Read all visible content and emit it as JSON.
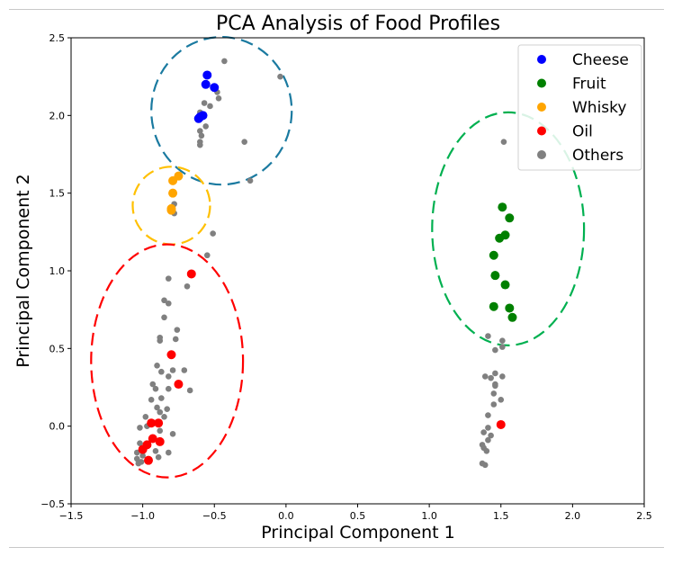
{
  "chart_data": {
    "type": "scatter",
    "title": "PCA Analysis of Food Profiles",
    "xlabel": "Principal Component 1",
    "ylabel": "Principal Component 2",
    "xlim": [
      -1.5,
      2.5
    ],
    "ylim": [
      -0.5,
      2.5
    ],
    "xticks": [
      -1.5,
      -1.0,
      -0.5,
      0.0,
      0.5,
      1.0,
      1.5,
      2.0,
      2.5
    ],
    "yticks": [
      -0.5,
      0.0,
      0.5,
      1.0,
      1.5,
      2.0,
      2.5
    ],
    "xtick_labels": [
      "−1.5",
      "−1.0",
      "−0.5",
      "0.0",
      "0.5",
      "1.0",
      "1.5",
      "2.0",
      "2.5"
    ],
    "ytick_labels": [
      "−0.5",
      "0.0",
      "0.5",
      "1.0",
      "1.5",
      "2.0",
      "2.5"
    ],
    "grid": false,
    "legend_position": "top-right",
    "series": [
      {
        "name": "Cheese",
        "color": "#0000ff",
        "points": [
          [
            -0.55,
            2.26
          ],
          [
            -0.56,
            2.2
          ],
          [
            -0.5,
            2.18
          ],
          [
            -0.58,
            2.0
          ],
          [
            -0.61,
            1.98
          ],
          [
            -0.6,
            1.99
          ]
        ]
      },
      {
        "name": "Fruit",
        "color": "#008000",
        "points": [
          [
            1.51,
            1.41
          ],
          [
            1.56,
            1.34
          ],
          [
            1.53,
            1.23
          ],
          [
            1.49,
            1.21
          ],
          [
            1.45,
            1.1
          ],
          [
            1.46,
            0.97
          ],
          [
            1.53,
            0.91
          ],
          [
            1.45,
            0.77
          ],
          [
            1.56,
            0.76
          ],
          [
            1.58,
            0.7
          ]
        ]
      },
      {
        "name": "Whisky",
        "color": "#ffa500",
        "points": [
          [
            -0.75,
            1.61
          ],
          [
            -0.79,
            1.58
          ],
          [
            -0.79,
            1.5
          ],
          [
            -0.8,
            1.4
          ],
          [
            -0.8,
            1.39
          ]
        ]
      },
      {
        "name": "Oil",
        "color": "#ff0000",
        "points": [
          [
            -0.66,
            0.98
          ],
          [
            -0.8,
            0.46
          ],
          [
            -0.75,
            0.27
          ],
          [
            -0.94,
            0.02
          ],
          [
            -0.89,
            0.02
          ],
          [
            -0.93,
            -0.08
          ],
          [
            -0.88,
            -0.1
          ],
          [
            -0.97,
            -0.12
          ],
          [
            -1.0,
            -0.15
          ],
          [
            -0.96,
            -0.22
          ],
          [
            1.5,
            0.01
          ]
        ]
      },
      {
        "name": "Others",
        "color": "#808080",
        "points": [
          [
            -0.43,
            2.35
          ],
          [
            -0.04,
            2.25
          ],
          [
            -0.48,
            2.15
          ],
          [
            -0.47,
            2.11
          ],
          [
            -0.57,
            2.08
          ],
          [
            -0.53,
            2.06
          ],
          [
            -0.6,
            2.02
          ],
          [
            -0.56,
            1.93
          ],
          [
            -0.6,
            1.9
          ],
          [
            -0.59,
            1.87
          ],
          [
            -0.6,
            1.83
          ],
          [
            -0.6,
            1.81
          ],
          [
            -0.29,
            1.83
          ],
          [
            -0.25,
            1.58
          ],
          [
            -0.78,
            1.43
          ],
          [
            -0.78,
            1.37
          ],
          [
            -0.51,
            1.24
          ],
          [
            -0.55,
            1.1
          ],
          [
            -0.82,
            0.95
          ],
          [
            -0.69,
            0.9
          ],
          [
            -0.85,
            0.81
          ],
          [
            -0.82,
            0.79
          ],
          [
            -0.85,
            0.7
          ],
          [
            -0.76,
            0.62
          ],
          [
            -0.88,
            0.57
          ],
          [
            -0.88,
            0.55
          ],
          [
            -0.77,
            0.56
          ],
          [
            -0.9,
            0.39
          ],
          [
            -0.87,
            0.35
          ],
          [
            -0.79,
            0.36
          ],
          [
            -0.71,
            0.36
          ],
          [
            -0.82,
            0.32
          ],
          [
            -0.93,
            0.27
          ],
          [
            -0.91,
            0.24
          ],
          [
            -0.82,
            0.24
          ],
          [
            -0.67,
            0.23
          ],
          [
            -0.94,
            0.17
          ],
          [
            -0.87,
            0.18
          ],
          [
            -0.9,
            0.12
          ],
          [
            -0.83,
            0.11
          ],
          [
            -0.88,
            0.09
          ],
          [
            -0.98,
            0.06
          ],
          [
            -0.85,
            0.06
          ],
          [
            -1.02,
            -0.01
          ],
          [
            -0.97,
            0.0
          ],
          [
            -0.88,
            -0.03
          ],
          [
            -0.79,
            -0.05
          ],
          [
            -1.02,
            -0.11
          ],
          [
            -0.91,
            -0.16
          ],
          [
            -0.82,
            -0.17
          ],
          [
            -0.89,
            -0.2
          ],
          [
            -1.04,
            -0.17
          ],
          [
            -1.04,
            -0.21
          ],
          [
            -1.01,
            -0.23
          ],
          [
            -1.03,
            -0.24
          ],
          [
            -1.0,
            -0.19
          ],
          [
            1.52,
            1.83
          ],
          [
            1.46,
            0.98
          ],
          [
            1.41,
            0.58
          ],
          [
            1.51,
            0.55
          ],
          [
            1.46,
            0.49
          ],
          [
            1.51,
            0.51
          ],
          [
            1.46,
            0.34
          ],
          [
            1.51,
            0.32
          ],
          [
            1.39,
            0.32
          ],
          [
            1.43,
            0.31
          ],
          [
            1.46,
            0.27
          ],
          [
            1.46,
            0.26
          ],
          [
            1.45,
            0.21
          ],
          [
            1.5,
            0.17
          ],
          [
            1.45,
            0.14
          ],
          [
            1.41,
            0.07
          ],
          [
            1.41,
            -0.01
          ],
          [
            1.38,
            -0.04
          ],
          [
            1.43,
            -0.06
          ],
          [
            1.41,
            -0.09
          ],
          [
            1.37,
            -0.12
          ],
          [
            1.38,
            -0.14
          ],
          [
            1.4,
            -0.16
          ],
          [
            1.37,
            -0.24
          ],
          [
            1.39,
            -0.25
          ]
        ]
      }
    ],
    "cluster_ellipses": [
      {
        "cluster": "Cheese",
        "color": "#1a7aa0",
        "center": [
          -0.45,
          2.03
        ],
        "radii": [
          0.49,
          0.475
        ]
      },
      {
        "cluster": "Whisky",
        "color": "#ffc000",
        "center": [
          -0.8,
          1.42
        ],
        "radii": [
          0.27,
          0.25
        ]
      },
      {
        "cluster": "Oil",
        "color": "#ff0000",
        "center": [
          -0.83,
          0.42
        ],
        "radii": [
          0.53,
          0.75
        ]
      },
      {
        "cluster": "Fruit",
        "color": "#00b050",
        "center": [
          1.55,
          1.27
        ],
        "radii": [
          0.53,
          0.75
        ]
      }
    ]
  }
}
